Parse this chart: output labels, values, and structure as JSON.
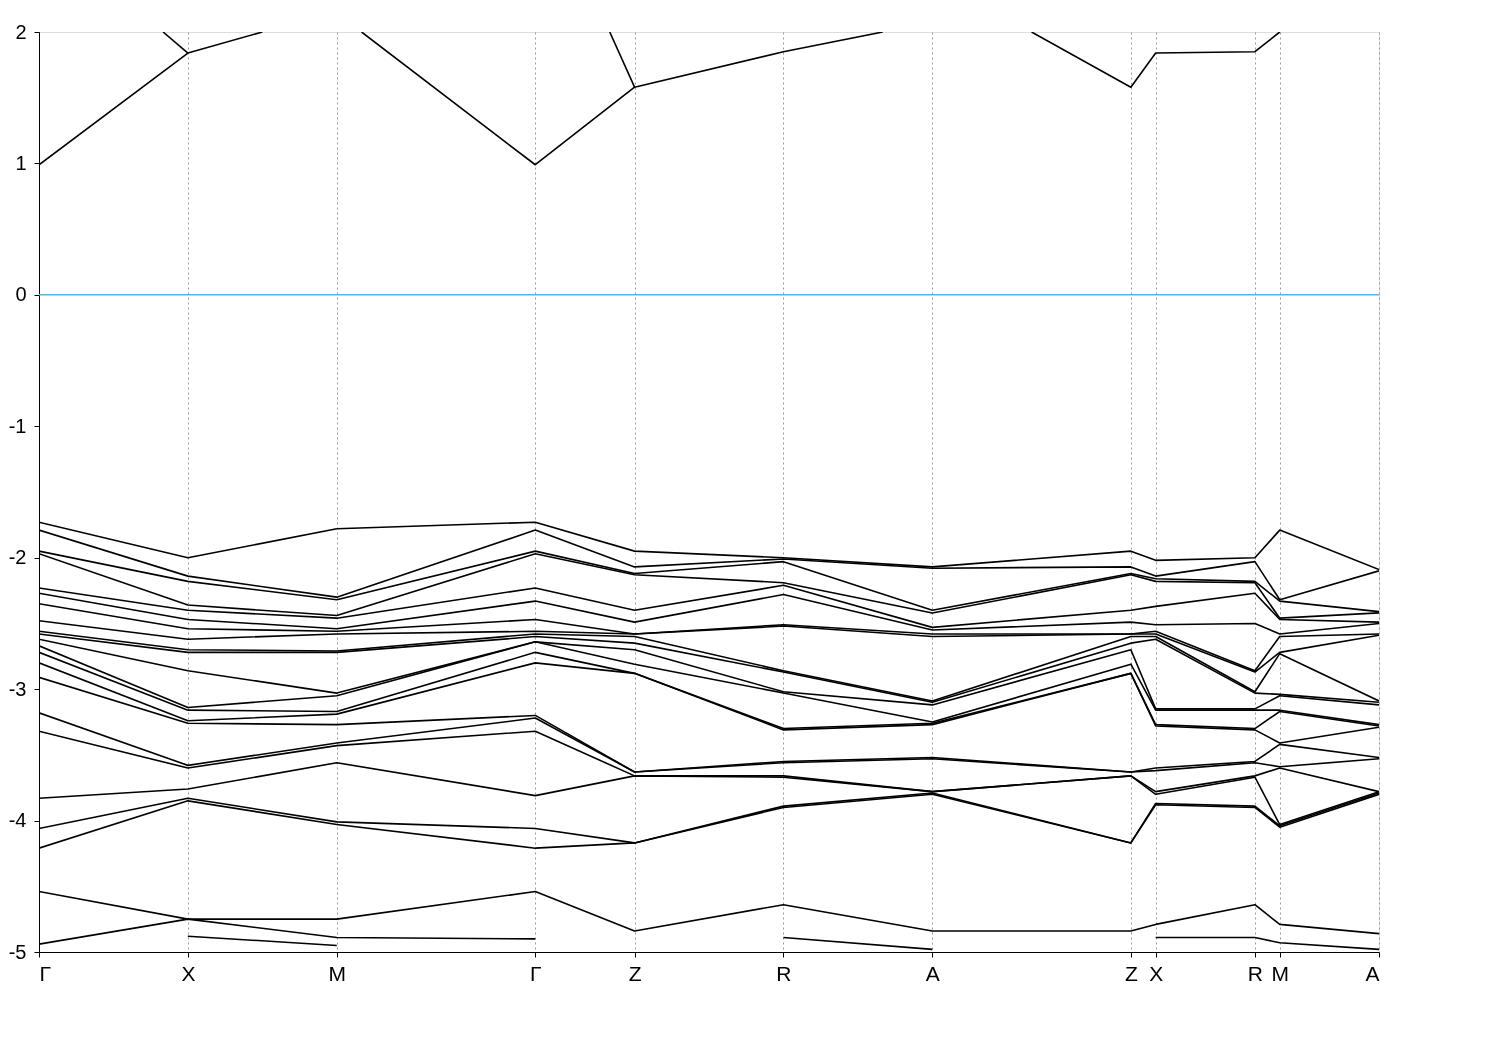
{
  "chart_data": {
    "type": "line",
    "categories": [
      "Γ",
      null,
      null,
      null,
      null,
      null,
      "X",
      null,
      null,
      null,
      null,
      null,
      "M",
      null,
      null,
      null,
      null,
      null,
      null,
      null,
      "Γ",
      null,
      null,
      null,
      "Z",
      null,
      null,
      null,
      null,
      null,
      "R",
      null,
      null,
      null,
      null,
      null,
      "A",
      null,
      null,
      null,
      null,
      null,
      null,
      null,
      "Z",
      "X",
      null,
      null,
      null,
      "R",
      "M",
      null,
      null,
      null,
      "A"
    ],
    "ylim": [
      -5,
      2
    ],
    "yticks": [
      -5,
      -4,
      -3,
      -2,
      -1,
      0,
      1,
      2
    ],
    "grid": "x",
    "line_style": "solid",
    "ref_lines": [
      {
        "axis": "y",
        "value": 0,
        "color": "#56b4e9"
      }
    ],
    "series": [
      {
        "color": "#000000",
        "values": [
          0.99,
          null,
          null,
          null,
          null,
          null,
          1.84,
          null,
          null,
          2,
          null,
          null,
          null,
          null,
          null,
          null,
          null,
          null,
          null,
          null,
          null,
          null,
          null,
          null,
          null,
          null,
          null,
          null,
          null,
          null,
          null,
          null,
          null,
          null,
          null,
          null,
          null,
          null,
          null,
          null,
          null,
          null,
          null,
          null,
          null,
          null,
          null,
          null,
          null,
          null,
          null,
          null,
          null,
          null,
          null
        ]
      },
      {
        "color": "#000000",
        "values": [
          null,
          null,
          null,
          null,
          null,
          null,
          null,
          null,
          null,
          null,
          null,
          null,
          null,
          2,
          null,
          null,
          null,
          null,
          null,
          null,
          0.99,
          null,
          null,
          null,
          1.58,
          null,
          null,
          null,
          null,
          null,
          1.85,
          null,
          null,
          null,
          2,
          null,
          null,
          null,
          null,
          null,
          null,
          null,
          null,
          null,
          null,
          null,
          null,
          null,
          null,
          null,
          null,
          null,
          null,
          null,
          null
        ]
      },
      {
        "color": "#000000",
        "values": [
          null,
          null,
          null,
          null,
          null,
          null,
          null,
          null,
          null,
          null,
          null,
          null,
          null,
          null,
          null,
          null,
          null,
          null,
          null,
          null,
          null,
          null,
          null,
          null,
          null,
          null,
          null,
          null,
          null,
          null,
          null,
          null,
          null,
          null,
          null,
          null,
          null,
          null,
          null,
          null,
          2,
          null,
          null,
          null,
          1.58,
          1.84,
          null,
          null,
          null,
          1.85,
          2,
          null,
          null,
          null,
          null
        ]
      },
      {
        "color": "#000000",
        "values": [
          null,
          null,
          null,
          null,
          null,
          2,
          1.84,
          null,
          null,
          null,
          null,
          null,
          null,
          null,
          null,
          null,
          null,
          null,
          null,
          null,
          null,
          null,
          null,
          null,
          null,
          null,
          null,
          null,
          null,
          null,
          null,
          null,
          null,
          null,
          null,
          null,
          null,
          null,
          null,
          null,
          null,
          null,
          null,
          null,
          null,
          null,
          null,
          null,
          null,
          null,
          null,
          null,
          null,
          null,
          null
        ]
      },
      {
        "color": "#000000",
        "values": [
          null,
          null,
          null,
          null,
          null,
          null,
          null,
          null,
          null,
          null,
          null,
          null,
          null,
          null,
          null,
          null,
          null,
          null,
          null,
          null,
          null,
          null,
          null,
          2,
          1.58,
          null,
          null,
          null,
          null,
          null,
          null,
          null,
          null,
          null,
          null,
          null,
          null,
          null,
          null,
          null,
          null,
          null,
          null,
          null,
          null,
          null,
          null,
          null,
          null,
          null,
          null,
          null,
          null,
          null,
          null
        ]
      },
      {
        "color": "#000000",
        "values": [
          -1.73,
          null,
          null,
          null,
          null,
          null,
          -2.0,
          null,
          null,
          null,
          null,
          null,
          -1.78,
          null,
          null,
          null,
          null,
          null,
          null,
          null,
          -1.73,
          null,
          null,
          null,
          -1.95,
          null,
          null,
          null,
          null,
          null,
          -2.0,
          null,
          null,
          null,
          null,
          null,
          -2.07,
          null,
          null,
          null,
          null,
          null,
          null,
          null,
          -1.95,
          -2.02,
          null,
          null,
          null,
          -2.0,
          -1.79,
          null,
          null,
          null,
          -2.09
        ]
      },
      {
        "color": "#000000",
        "values": [
          -1.79,
          null,
          null,
          null,
          null,
          null,
          -2.14,
          null,
          null,
          null,
          null,
          null,
          -2.3,
          null,
          null,
          null,
          null,
          null,
          null,
          null,
          -1.79,
          null,
          null,
          null,
          -2.07,
          null,
          null,
          null,
          null,
          null,
          -2.01,
          null,
          null,
          null,
          null,
          null,
          -2.08,
          null,
          null,
          null,
          null,
          null,
          null,
          null,
          -2.07,
          -2.14,
          null,
          null,
          null,
          -2.03,
          -2.32,
          null,
          null,
          null,
          -2.1
        ]
      },
      {
        "color": "#000000",
        "values": [
          -1.95,
          null,
          null,
          null,
          null,
          null,
          -2.18,
          null,
          null,
          null,
          null,
          null,
          -2.32,
          null,
          null,
          null,
          null,
          null,
          null,
          null,
          -1.95,
          null,
          null,
          null,
          -2.12,
          null,
          null,
          null,
          null,
          null,
          -2.03,
          null,
          null,
          null,
          null,
          null,
          -2.4,
          null,
          null,
          null,
          null,
          null,
          null,
          null,
          -2.12,
          -2.16,
          null,
          null,
          null,
          -2.18,
          -2.33,
          null,
          null,
          null,
          -2.41
        ]
      },
      {
        "color": "#000000",
        "values": [
          -1.97,
          null,
          null,
          null,
          null,
          null,
          -2.36,
          null,
          null,
          null,
          null,
          null,
          -2.44,
          null,
          null,
          null,
          null,
          null,
          null,
          null,
          -1.97,
          null,
          null,
          null,
          -2.13,
          null,
          null,
          null,
          null,
          null,
          -2.19,
          null,
          null,
          null,
          null,
          null,
          -2.42,
          null,
          null,
          null,
          null,
          null,
          null,
          null,
          -2.13,
          -2.18,
          null,
          null,
          null,
          -2.19,
          -2.46,
          null,
          null,
          null,
          -2.42
        ]
      },
      {
        "color": "#000000",
        "values": [
          -2.23,
          null,
          null,
          null,
          null,
          null,
          -2.4,
          null,
          null,
          null,
          null,
          null,
          -2.46,
          null,
          null,
          null,
          null,
          null,
          null,
          null,
          -2.23,
          null,
          null,
          null,
          -2.4,
          null,
          null,
          null,
          null,
          null,
          -2.21,
          null,
          null,
          null,
          null,
          null,
          -2.53,
          null,
          null,
          null,
          null,
          null,
          null,
          null,
          -2.4,
          -2.37,
          null,
          null,
          null,
          -2.27,
          -2.47,
          null,
          null,
          null,
          -2.49
        ]
      },
      {
        "color": "#000000",
        "values": [
          -2.27,
          null,
          null,
          null,
          null,
          null,
          -2.47,
          null,
          null,
          null,
          null,
          null,
          -2.54,
          null,
          null,
          null,
          null,
          null,
          null,
          null,
          -2.33,
          null,
          null,
          null,
          -2.49,
          null,
          null,
          null,
          null,
          null,
          -2.28,
          null,
          null,
          null,
          null,
          null,
          -2.55,
          null,
          null,
          null,
          null,
          null,
          null,
          null,
          -2.49,
          -2.51,
          null,
          null,
          null,
          -2.5,
          -2.58,
          null,
          null,
          null,
          -2.5
        ]
      },
      {
        "color": "#000000",
        "values": [
          -2.35,
          null,
          null,
          null,
          null,
          null,
          -2.54,
          null,
          null,
          null,
          null,
          null,
          -2.56,
          null,
          null,
          null,
          null,
          null,
          null,
          null,
          -2.47,
          null,
          null,
          null,
          -2.58,
          null,
          null,
          null,
          null,
          null,
          -2.51,
          null,
          null,
          null,
          null,
          null,
          -2.58,
          null,
          null,
          null,
          null,
          null,
          null,
          null,
          -2.58,
          -2.56,
          null,
          null,
          null,
          -2.86,
          -2.6,
          null,
          null,
          null,
          -2.58
        ]
      },
      {
        "color": "#000000",
        "values": [
          -2.48,
          null,
          null,
          null,
          null,
          null,
          -2.62,
          null,
          null,
          null,
          null,
          null,
          -2.58,
          null,
          null,
          null,
          null,
          null,
          null,
          null,
          -2.56,
          null,
          null,
          null,
          -2.58,
          null,
          null,
          null,
          null,
          null,
          -2.52,
          null,
          null,
          null,
          null,
          null,
          -2.6,
          null,
          null,
          null,
          null,
          null,
          null,
          null,
          -2.58,
          -2.58,
          null,
          null,
          null,
          -2.87,
          -2.72,
          null,
          null,
          null,
          -2.59
        ]
      },
      {
        "color": "#000000",
        "values": [
          -2.56,
          null,
          null,
          null,
          null,
          null,
          -2.7,
          null,
          null,
          null,
          null,
          null,
          -2.71,
          null,
          null,
          null,
          null,
          null,
          null,
          null,
          -2.58,
          null,
          null,
          null,
          -2.6,
          null,
          null,
          null,
          null,
          null,
          -2.86,
          null,
          null,
          null,
          null,
          null,
          -3.09,
          null,
          null,
          null,
          null,
          null,
          null,
          null,
          -2.6,
          -2.6,
          null,
          null,
          null,
          -3.02,
          -2.73,
          null,
          null,
          null,
          -3.09
        ]
      },
      {
        "color": "#000000",
        "values": [
          -2.58,
          null,
          null,
          null,
          null,
          null,
          -2.72,
          null,
          null,
          null,
          null,
          null,
          -2.72,
          null,
          null,
          null,
          null,
          null,
          null,
          null,
          -2.6,
          null,
          null,
          null,
          -2.65,
          null,
          null,
          null,
          null,
          null,
          -2.87,
          null,
          null,
          null,
          null,
          null,
          -3.1,
          null,
          null,
          null,
          null,
          null,
          null,
          null,
          -2.65,
          -2.62,
          null,
          null,
          null,
          -3.03,
          -3.04,
          null,
          null,
          null,
          -3.1
        ]
      },
      {
        "color": "#000000",
        "values": [
          -2.62,
          null,
          null,
          null,
          null,
          null,
          -2.86,
          null,
          null,
          null,
          null,
          null,
          -3.03,
          null,
          null,
          null,
          null,
          null,
          null,
          null,
          -2.64,
          null,
          null,
          null,
          -2.7,
          null,
          null,
          null,
          null,
          null,
          -3.02,
          null,
          null,
          null,
          null,
          null,
          -3.12,
          null,
          null,
          null,
          null,
          null,
          null,
          null,
          -2.7,
          -3.15,
          null,
          null,
          null,
          -3.15,
          -3.05,
          null,
          null,
          null,
          -3.12
        ]
      },
      {
        "color": "#000000",
        "values": [
          -2.67,
          null,
          null,
          null,
          null,
          null,
          -3.14,
          null,
          null,
          null,
          null,
          null,
          -3.05,
          null,
          null,
          null,
          null,
          null,
          null,
          null,
          -2.64,
          null,
          null,
          null,
          -2.81,
          null,
          null,
          null,
          null,
          null,
          -3.03,
          null,
          null,
          null,
          null,
          null,
          -3.25,
          null,
          null,
          null,
          null,
          null,
          null,
          null,
          -2.81,
          -3.16,
          null,
          null,
          null,
          -3.16,
          -3.16,
          null,
          null,
          null,
          -3.27
        ]
      },
      {
        "color": "#000000",
        "values": [
          -2.72,
          null,
          null,
          null,
          null,
          null,
          -3.16,
          null,
          null,
          null,
          null,
          null,
          -3.17,
          null,
          null,
          null,
          null,
          null,
          null,
          null,
          -2.72,
          null,
          null,
          null,
          -2.88,
          null,
          null,
          null,
          null,
          null,
          -3.3,
          null,
          null,
          null,
          null,
          null,
          -3.26,
          null,
          null,
          null,
          null,
          null,
          null,
          null,
          -2.88,
          -3.27,
          null,
          null,
          null,
          -3.3,
          -3.17,
          null,
          null,
          null,
          -3.28
        ]
      },
      {
        "color": "#000000",
        "values": [
          -2.8,
          null,
          null,
          null,
          null,
          null,
          -3.24,
          null,
          null,
          null,
          null,
          null,
          -3.19,
          null,
          null,
          null,
          null,
          null,
          null,
          null,
          -2.8,
          null,
          null,
          null,
          -2.88,
          null,
          null,
          null,
          null,
          null,
          -3.31,
          null,
          null,
          null,
          null,
          null,
          -3.27,
          null,
          null,
          null,
          null,
          null,
          null,
          null,
          -2.88,
          -3.28,
          null,
          null,
          null,
          -3.31,
          -3.41,
          null,
          null,
          null,
          -3.29
        ]
      },
      {
        "color": "#000000",
        "values": [
          -2.91,
          null,
          null,
          null,
          null,
          null,
          -3.26,
          null,
          null,
          null,
          null,
          null,
          -3.27,
          null,
          null,
          null,
          null,
          null,
          null,
          null,
          -3.2,
          null,
          null,
          null,
          -3.63,
          null,
          null,
          null,
          null,
          null,
          -3.55,
          null,
          null,
          null,
          null,
          null,
          -3.52,
          null,
          null,
          null,
          null,
          null,
          null,
          null,
          -3.63,
          -3.6,
          null,
          null,
          null,
          -3.55,
          -3.42,
          null,
          null,
          null,
          -3.52
        ]
      },
      {
        "color": "#000000",
        "values": [
          -3.18,
          null,
          null,
          null,
          null,
          null,
          -3.58,
          null,
          null,
          null,
          null,
          null,
          -3.41,
          null,
          null,
          null,
          null,
          null,
          null,
          null,
          -3.22,
          null,
          null,
          null,
          -3.63,
          null,
          null,
          null,
          null,
          null,
          -3.56,
          null,
          null,
          null,
          null,
          null,
          -3.53,
          null,
          null,
          null,
          null,
          null,
          null,
          null,
          -3.63,
          -3.62,
          null,
          null,
          null,
          -3.56,
          -3.59,
          null,
          null,
          null,
          -3.53
        ]
      },
      {
        "color": "#000000",
        "values": [
          -3.32,
          null,
          null,
          null,
          null,
          null,
          -3.6,
          null,
          null,
          null,
          null,
          null,
          -3.43,
          null,
          null,
          null,
          null,
          null,
          null,
          null,
          -3.32,
          null,
          null,
          null,
          -3.66,
          null,
          null,
          null,
          null,
          null,
          -3.66,
          null,
          null,
          null,
          null,
          null,
          -3.78,
          null,
          null,
          null,
          null,
          null,
          null,
          null,
          -3.66,
          -3.78,
          null,
          null,
          null,
          -3.66,
          -3.6,
          null,
          null,
          null,
          -3.78
        ]
      },
      {
        "color": "#000000",
        "values": [
          -3.83,
          null,
          null,
          null,
          null,
          null,
          -3.76,
          null,
          null,
          null,
          null,
          null,
          -3.56,
          null,
          null,
          null,
          null,
          null,
          null,
          null,
          -3.81,
          null,
          null,
          null,
          -3.66,
          null,
          null,
          null,
          null,
          null,
          -3.67,
          null,
          null,
          null,
          null,
          null,
          -3.78,
          null,
          null,
          null,
          null,
          null,
          null,
          null,
          -3.66,
          -3.8,
          null,
          null,
          null,
          -3.67,
          -4.03,
          null,
          null,
          null,
          -3.78
        ]
      },
      {
        "color": "#000000",
        "values": [
          -4.06,
          null,
          null,
          null,
          null,
          null,
          -3.83,
          null,
          null,
          null,
          null,
          null,
          -4.01,
          null,
          null,
          null,
          null,
          null,
          null,
          null,
          -4.06,
          null,
          null,
          null,
          -4.17,
          null,
          null,
          null,
          null,
          null,
          -3.89,
          null,
          null,
          null,
          null,
          null,
          -3.79,
          null,
          null,
          null,
          null,
          null,
          null,
          null,
          -4.17,
          -3.87,
          null,
          null,
          null,
          -3.89,
          -4.04,
          null,
          null,
          null,
          -3.79
        ]
      },
      {
        "color": "#000000",
        "values": [
          -4.21,
          null,
          null,
          null,
          null,
          null,
          -3.85,
          null,
          null,
          null,
          null,
          null,
          -4.03,
          null,
          null,
          null,
          null,
          null,
          null,
          null,
          -4.21,
          null,
          null,
          null,
          -4.17,
          null,
          null,
          null,
          null,
          null,
          -3.9,
          null,
          null,
          null,
          null,
          null,
          -3.8,
          null,
          null,
          null,
          null,
          null,
          null,
          null,
          -4.17,
          -3.88,
          null,
          null,
          null,
          -3.9,
          -4.05,
          null,
          null,
          null,
          -3.8
        ]
      },
      {
        "color": "#000000",
        "values": [
          -4.54,
          null,
          null,
          null,
          null,
          null,
          -4.75,
          null,
          null,
          null,
          null,
          null,
          -4.75,
          null,
          null,
          null,
          null,
          null,
          null,
          null,
          -4.54,
          null,
          null,
          null,
          -4.84,
          null,
          null,
          null,
          null,
          null,
          -4.64,
          null,
          null,
          null,
          null,
          null,
          -4.84,
          null,
          null,
          null,
          null,
          null,
          null,
          null,
          -4.84,
          -4.79,
          null,
          null,
          null,
          -4.64,
          -4.79,
          null,
          null,
          null,
          -4.86
        ]
      },
      {
        "color": "#000000",
        "values": [
          -4.94,
          null,
          null,
          null,
          null,
          null,
          -4.75,
          null,
          null,
          null,
          null,
          null,
          -4.89,
          null,
          null,
          null,
          null,
          null,
          null,
          null,
          -4.9,
          null,
          null,
          null,
          null,
          null,
          null,
          null,
          null,
          null,
          null,
          null,
          null,
          null,
          null,
          null,
          null,
          null,
          null,
          null,
          null,
          null,
          null,
          null,
          null,
          null,
          null,
          null,
          null,
          null,
          null,
          null,
          null,
          null,
          null
        ]
      },
      {
        "color": "#000000",
        "values": [
          null,
          null,
          null,
          null,
          null,
          null,
          null,
          null,
          null,
          null,
          null,
          null,
          null,
          null,
          null,
          null,
          null,
          null,
          null,
          null,
          null,
          null,
          null,
          null,
          null,
          null,
          null,
          null,
          null,
          null,
          -4.89,
          null,
          null,
          null,
          null,
          null,
          -4.98,
          null,
          null,
          null,
          null,
          null,
          null,
          null,
          null,
          null,
          null,
          null,
          null,
          null,
          null,
          null,
          null,
          null,
          null
        ]
      },
      {
        "color": "#000000",
        "values": [
          null,
          null,
          null,
          null,
          null,
          null,
          null,
          null,
          null,
          null,
          null,
          null,
          null,
          null,
          null,
          null,
          null,
          null,
          null,
          null,
          null,
          null,
          null,
          null,
          null,
          null,
          null,
          null,
          null,
          null,
          null,
          null,
          null,
          null,
          null,
          null,
          null,
          null,
          null,
          null,
          null,
          null,
          null,
          null,
          null,
          -4.89,
          null,
          null,
          null,
          -4.89,
          -4.93,
          null,
          null,
          null,
          -4.98
        ]
      },
      {
        "color": "#000000",
        "values": [
          null,
          null,
          null,
          null,
          null,
          null,
          -4.88,
          null,
          null,
          null,
          null,
          null,
          -4.95,
          null,
          null,
          null,
          null,
          null,
          null,
          null,
          null,
          null,
          null,
          null,
          null,
          null,
          null,
          null,
          null,
          null,
          null,
          null,
          null,
          null,
          null,
          null,
          null,
          null,
          null,
          null,
          null,
          null,
          null,
          null,
          null,
          null,
          null,
          null,
          null,
          null,
          null,
          null,
          null,
          null,
          null
        ]
      }
    ]
  }
}
